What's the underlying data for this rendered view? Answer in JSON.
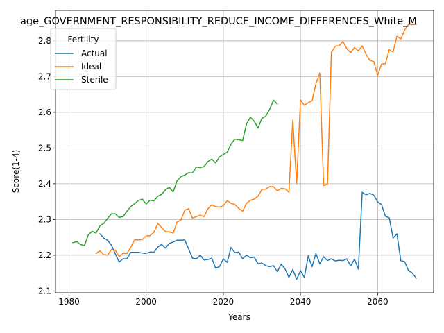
{
  "chart_data": {
    "type": "line",
    "title": "age_GOVERNMENT_RESPONSIBILITY_REDUCE_INCOME_DIFFERENCES_White_M",
    "xlabel": "Years",
    "ylabel": "Score(1-4)",
    "xlim": [
      1976.5,
      2074.5
    ],
    "ylim": [
      2.095,
      2.885
    ],
    "xticks": [
      1980,
      2000,
      2020,
      2040,
      2060
    ],
    "yticks": [
      2.1,
      2.2,
      2.3,
      2.4,
      2.5,
      2.6,
      2.7,
      2.8
    ],
    "ytick_labels": [
      "2.1",
      "2.2",
      "2.3",
      "2.4",
      "2.5",
      "2.6",
      "2.7",
      "2.8"
    ],
    "grid": true,
    "legend": {
      "title": "Fertility",
      "position": "upper-left"
    },
    "series": [
      {
        "name": "Actual",
        "color": "#1f77b4",
        "x": [
          1988,
          1989,
          1990,
          1991,
          1992,
          1993,
          1994,
          1995,
          1996,
          1997,
          1998,
          1999,
          2000,
          2001,
          2002,
          2003,
          2004,
          2005,
          2006,
          2007,
          2008,
          2009,
          2010,
          2011,
          2012,
          2013,
          2014,
          2015,
          2016,
          2017,
          2018,
          2019,
          2020,
          2021,
          2022,
          2023,
          2024,
          2025,
          2026,
          2027,
          2028,
          2029,
          2030,
          2031,
          2032,
          2033,
          2034,
          2035,
          2036,
          2037,
          2038,
          2039,
          2040,
          2041,
          2042,
          2043,
          2044,
          2045,
          2046,
          2047,
          2048,
          2049,
          2050,
          2051,
          2052,
          2053,
          2054,
          2055,
          2056,
          2057,
          2058,
          2059,
          2060,
          2061,
          2062,
          2063,
          2064,
          2065,
          2066,
          2067,
          2068,
          2069,
          2070
        ],
        "y": [
          2.26,
          2.248,
          2.242,
          2.228,
          2.204,
          2.181,
          2.19,
          2.19,
          2.208,
          2.208,
          2.208,
          2.206,
          2.205,
          2.209,
          2.208,
          2.223,
          2.23,
          2.22,
          2.233,
          2.237,
          2.242,
          2.242,
          2.243,
          2.218,
          2.192,
          2.19,
          2.2,
          2.187,
          2.188,
          2.192,
          2.164,
          2.168,
          2.19,
          2.18,
          2.222,
          2.207,
          2.209,
          2.19,
          2.2,
          2.193,
          2.195,
          2.176,
          2.178,
          2.171,
          2.168,
          2.171,
          2.154,
          2.175,
          2.162,
          2.138,
          2.16,
          2.133,
          2.157,
          2.138,
          2.198,
          2.168,
          2.205,
          2.176,
          2.196,
          2.185,
          2.19,
          2.184,
          2.186,
          2.185,
          2.19,
          2.17,
          2.189,
          2.161,
          2.376,
          2.369,
          2.373,
          2.368,
          2.349,
          2.342,
          2.309,
          2.305,
          2.248,
          2.26,
          2.185,
          2.182,
          2.157,
          2.15,
          2.136
        ]
      },
      {
        "name": "Ideal",
        "color": "#ff7f0e",
        "x": [
          1987,
          1988,
          1989,
          1990,
          1991,
          1992,
          1993,
          1994,
          1995,
          1996,
          1997,
          1998,
          1999,
          2000,
          2001,
          2002,
          2003,
          2004,
          2005,
          2006,
          2007,
          2008,
          2009,
          2010,
          2011,
          2012,
          2013,
          2014,
          2015,
          2016,
          2017,
          2018,
          2019,
          2020,
          2021,
          2022,
          2023,
          2024,
          2025,
          2026,
          2027,
          2028,
          2029,
          2030,
          2031,
          2032,
          2033,
          2034,
          2035,
          2036,
          2037,
          2038,
          2039,
          2040,
          2041,
          2042,
          2043,
          2044,
          2045,
          2046,
          2047,
          2048,
          2049,
          2050,
          2051,
          2052,
          2053,
          2054,
          2055,
          2056,
          2057,
          2058,
          2059,
          2060,
          2061,
          2062,
          2063,
          2064,
          2065,
          2066,
          2067,
          2068,
          2069,
          2070
        ],
        "y": [
          2.205,
          2.212,
          2.202,
          2.2,
          2.216,
          2.214,
          2.196,
          2.205,
          2.205,
          2.222,
          2.243,
          2.243,
          2.244,
          2.254,
          2.255,
          2.264,
          2.289,
          2.278,
          2.266,
          2.265,
          2.262,
          2.293,
          2.298,
          2.326,
          2.33,
          2.304,
          2.308,
          2.312,
          2.308,
          2.33,
          2.341,
          2.336,
          2.335,
          2.338,
          2.353,
          2.345,
          2.342,
          2.331,
          2.323,
          2.345,
          2.354,
          2.357,
          2.365,
          2.384,
          2.385,
          2.392,
          2.392,
          2.38,
          2.387,
          2.386,
          2.376,
          2.578,
          2.4,
          2.635,
          2.619,
          2.627,
          2.632,
          2.68,
          2.71,
          2.395,
          2.399,
          2.767,
          2.785,
          2.786,
          2.798,
          2.778,
          2.767,
          2.781,
          2.772,
          2.786,
          2.762,
          2.745,
          2.742,
          2.703,
          2.735,
          2.736,
          2.775,
          2.769,
          2.813,
          2.805,
          2.83,
          2.847,
          2.845,
          2.846
        ]
      },
      {
        "name": "Sterile",
        "color": "#2ca02c",
        "x": [
          1981,
          1982,
          1983,
          1984,
          1985,
          1986,
          1987,
          1988,
          1989,
          1990,
          1991,
          1992,
          1993,
          1994,
          1995,
          1996,
          1997,
          1998,
          1999,
          2000,
          2001,
          2002,
          2003,
          2004,
          2005,
          2006,
          2007,
          2008,
          2009,
          2010,
          2011,
          2012,
          2013,
          2014,
          2015,
          2016,
          2017,
          2018,
          2019,
          2020,
          2021,
          2022,
          2023,
          2024,
          2025,
          2026,
          2027,
          2028,
          2029,
          2030,
          2031,
          2032,
          2033,
          2034
        ],
        "y": [
          2.235,
          2.238,
          2.23,
          2.227,
          2.257,
          2.267,
          2.262,
          2.282,
          2.289,
          2.303,
          2.316,
          2.316,
          2.306,
          2.308,
          2.323,
          2.336,
          2.344,
          2.353,
          2.357,
          2.343,
          2.354,
          2.352,
          2.365,
          2.37,
          2.383,
          2.39,
          2.377,
          2.408,
          2.42,
          2.424,
          2.431,
          2.43,
          2.447,
          2.445,
          2.448,
          2.462,
          2.469,
          2.458,
          2.475,
          2.482,
          2.488,
          2.511,
          2.525,
          2.523,
          2.521,
          2.567,
          2.586,
          2.575,
          2.556,
          2.583,
          2.589,
          2.608,
          2.634,
          2.623
        ]
      }
    ]
  }
}
